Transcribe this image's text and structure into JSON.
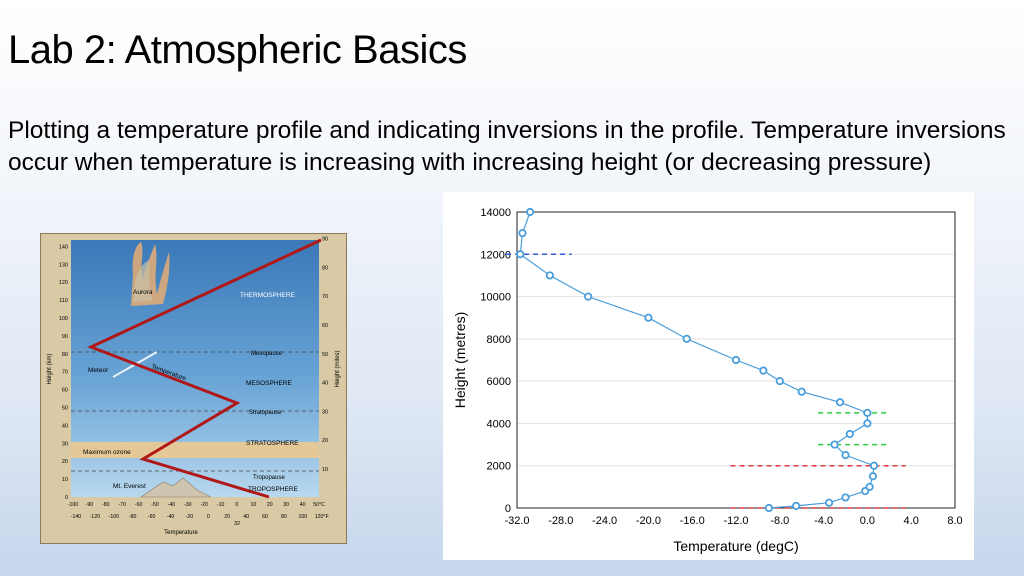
{
  "slide": {
    "title": "Lab 2: Atmospheric Basics",
    "description": "Plotting a temperature profile and indicating inversions in the profile. Temperature inversions occur when temperature is increasing with increasing height (or decreasing pressure)"
  },
  "diagram": {
    "layers": [
      "THERMOSPHERE",
      "Mesopause",
      "MESOSPHERE",
      "Stratopause",
      "STRATOSPHERE",
      "Tropopause",
      "TROPOSPHERE"
    ],
    "features": [
      "Aurora",
      "Meteor",
      "Maximum ozone",
      "Mt. Everest"
    ],
    "curve_label": "Temperature",
    "left_axis_label": "Height (km)",
    "right_axis_label": "Height (miles)",
    "bottom_axis_label": "Temperature",
    "left_ticks": [
      "0",
      "10",
      "20",
      "30",
      "40",
      "50",
      "60",
      "70",
      "80",
      "90",
      "100",
      "110",
      "120",
      "130",
      "140"
    ],
    "right_ticks": [
      "10",
      "20",
      "30",
      "40",
      "50",
      "60",
      "70",
      "80",
      "90"
    ],
    "celsius_ticks": [
      "-100",
      "-90",
      "-80",
      "-70",
      "-60",
      "-50",
      "-40",
      "-30",
      "-20",
      "-10",
      "0",
      "10",
      "20",
      "30",
      "40",
      "50°C"
    ],
    "fahrenheit_ticks": [
      "-140",
      "-120",
      "-100",
      "-80",
      "-60",
      "-40",
      "-20",
      "0",
      "20",
      "40",
      "60",
      "80",
      "100",
      "120°F"
    ],
    "extra_tick": "32",
    "colors": {
      "sky_top": "#3a78b8",
      "sky_bottom": "#b8d8ee",
      "ozone_band": "#f3c98a",
      "curve": "#b01818",
      "frame": "#d9c9a4"
    }
  },
  "chart_data": {
    "type": "line",
    "xlabel": "Temperature (degC)",
    "ylabel": "Height (metres)",
    "xlim": [
      -32,
      8
    ],
    "ylim": [
      0,
      14000
    ],
    "x_ticks": [
      -32,
      -28,
      -24,
      -20,
      -16,
      -12,
      -8,
      -4,
      0,
      4,
      8
    ],
    "x_tick_labels": [
      "-32.0",
      "-28.0",
      "-24.0",
      "-20.0",
      "-16.0",
      "-12.0",
      "-8.0",
      "-4.0",
      "0.0",
      "4.0",
      "8.0"
    ],
    "y_ticks": [
      0,
      2000,
      4000,
      6000,
      8000,
      10000,
      12000,
      14000
    ],
    "y_tick_labels": [
      "0",
      "2000",
      "4000",
      "6000",
      "8000",
      "10000",
      "12000",
      "14000"
    ],
    "grid": "horizontal",
    "series": [
      {
        "color": "#4a9edb",
        "points": [
          [
            -9.0,
            0
          ],
          [
            -6.5,
            100
          ],
          [
            -3.5,
            250
          ],
          [
            -2.0,
            500
          ],
          [
            -0.2,
            800
          ],
          [
            0.2,
            1000
          ],
          [
            0.5,
            1500
          ],
          [
            0.6,
            2000
          ],
          [
            -2.0,
            2500
          ],
          [
            -3.0,
            3000
          ],
          [
            -1.6,
            3500
          ],
          [
            0.0,
            4000
          ],
          [
            0.0,
            4500
          ],
          [
            -2.5,
            5000
          ],
          [
            -6.0,
            5500
          ],
          [
            -8.0,
            6000
          ],
          [
            -9.5,
            6500
          ],
          [
            -12.0,
            7000
          ],
          [
            -16.5,
            8000
          ],
          [
            -20.0,
            9000
          ],
          [
            -25.5,
            10000
          ],
          [
            -29.0,
            11000
          ],
          [
            -31.7,
            12000
          ],
          [
            -31.5,
            13000
          ],
          [
            -30.8,
            14000
          ]
        ]
      }
    ],
    "inversion_lines": [
      {
        "y": 0,
        "x_start": -12.5,
        "x_end": 3.5,
        "color": "#e03a3a"
      },
      {
        "y": 2000,
        "x_start": -12.5,
        "x_end": 3.5,
        "color": "#e03a3a"
      },
      {
        "y": 3000,
        "x_start": -4.5,
        "x_end": 2.0,
        "color": "#2ecc40"
      },
      {
        "y": 4500,
        "x_start": -4.5,
        "x_end": 2.0,
        "color": "#2ecc40"
      },
      {
        "y": 12000,
        "x_start": -33.0,
        "x_end": -27.0,
        "color": "#2e5fd9"
      }
    ]
  }
}
